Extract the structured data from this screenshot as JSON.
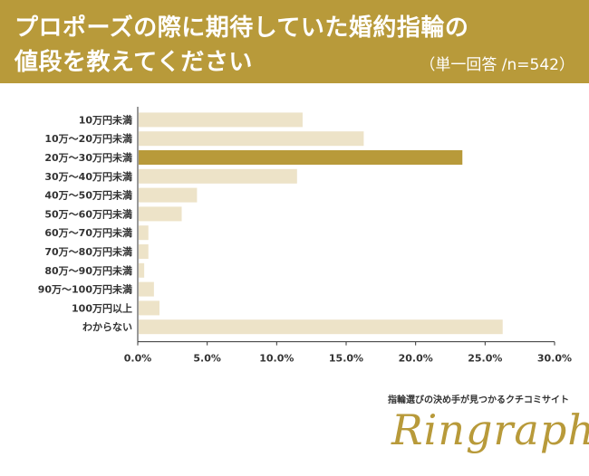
{
  "header": {
    "title_line1": "プロポーズの際に期待していた婚約指輪の",
    "title_line2": "値段を教えてください",
    "subtitle": "（単一回答 /n=542）"
  },
  "footer": {
    "caption": "指輪選びの決め手が見つかるクチコミサイト",
    "logo_text": "Ringraph"
  },
  "colors": {
    "header_bg": "#b89a3a",
    "bar": "#ede3c8",
    "bar_highlight": "#b89a3a",
    "axis": "#333333"
  },
  "chart_data": {
    "type": "bar",
    "orientation": "horizontal",
    "categories": [
      "10万円未満",
      "10万～20万円未満",
      "20万～30万円未満",
      "30万～40万円未満",
      "40万～50万円未満",
      "50万～60万円未満",
      "60万～70万円未満",
      "70万～80万円未満",
      "80万～90万円未満",
      "90万～100万円未満",
      "100万円以上",
      "わからない"
    ],
    "values": [
      11.8,
      16.2,
      23.3,
      11.4,
      4.2,
      3.1,
      0.7,
      0.7,
      0.4,
      1.1,
      1.5,
      26.2
    ],
    "highlight_index": 2,
    "xlim": [
      0,
      30
    ],
    "xticks": [
      "0.0%",
      "5.0%",
      "10.0%",
      "15.0%",
      "20.0%",
      "25.0%",
      "30.0%"
    ],
    "grid": false,
    "title": "",
    "xlabel": "",
    "ylabel": ""
  }
}
